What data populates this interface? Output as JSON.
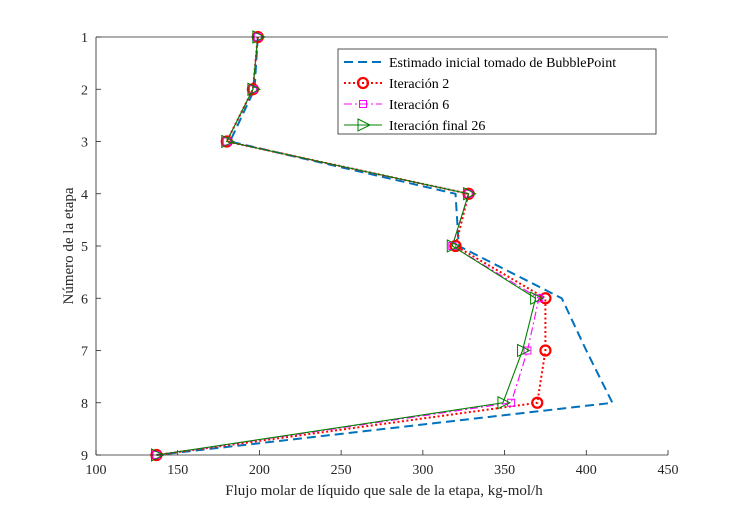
{
  "chart_data": {
    "type": "line",
    "title": "",
    "xlabel": "Flujo molar de líquido que sale de la etapa, kg-mol/h",
    "ylabel": "Número de la etapa",
    "xlim": [
      100,
      450
    ],
    "ylim": [
      1,
      9
    ],
    "y_reversed": true,
    "grid": false,
    "legend_position": "top-right",
    "x_ticks": [
      "100",
      "150",
      "200",
      "250",
      "300",
      "350",
      "400",
      "450"
    ],
    "y_ticks": [
      "1",
      "2",
      "3",
      "4",
      "5",
      "6",
      "7",
      "8",
      "9"
    ],
    "stages": [
      1,
      2,
      3,
      4,
      5,
      6,
      7,
      8,
      9
    ],
    "series": [
      {
        "name": "Estimado inicial tomado de BubblePoint",
        "color": "#0072BD",
        "line": "dashed",
        "marker": "none",
        "x": [
          199,
          197,
          182,
          320,
          322,
          385,
          400,
          416,
          137
        ]
      },
      {
        "name": "Iteración 2",
        "color": "#FF0000",
        "line": "dotted",
        "marker": "circle",
        "x": [
          199,
          196,
          180,
          328,
          320,
          375,
          375,
          370,
          137
        ]
      },
      {
        "name": "Iteración 6",
        "color": "#FF00FF",
        "line": "dashdot",
        "marker": "square",
        "x": [
          199,
          196,
          180,
          328,
          318,
          371,
          364,
          354,
          137
        ]
      },
      {
        "name": "Iteración final 26",
        "color": "#008000",
        "line": "solid",
        "marker": "triangle-right",
        "x": [
          199,
          196,
          180,
          328,
          318,
          369,
          361,
          349,
          137
        ]
      }
    ]
  }
}
